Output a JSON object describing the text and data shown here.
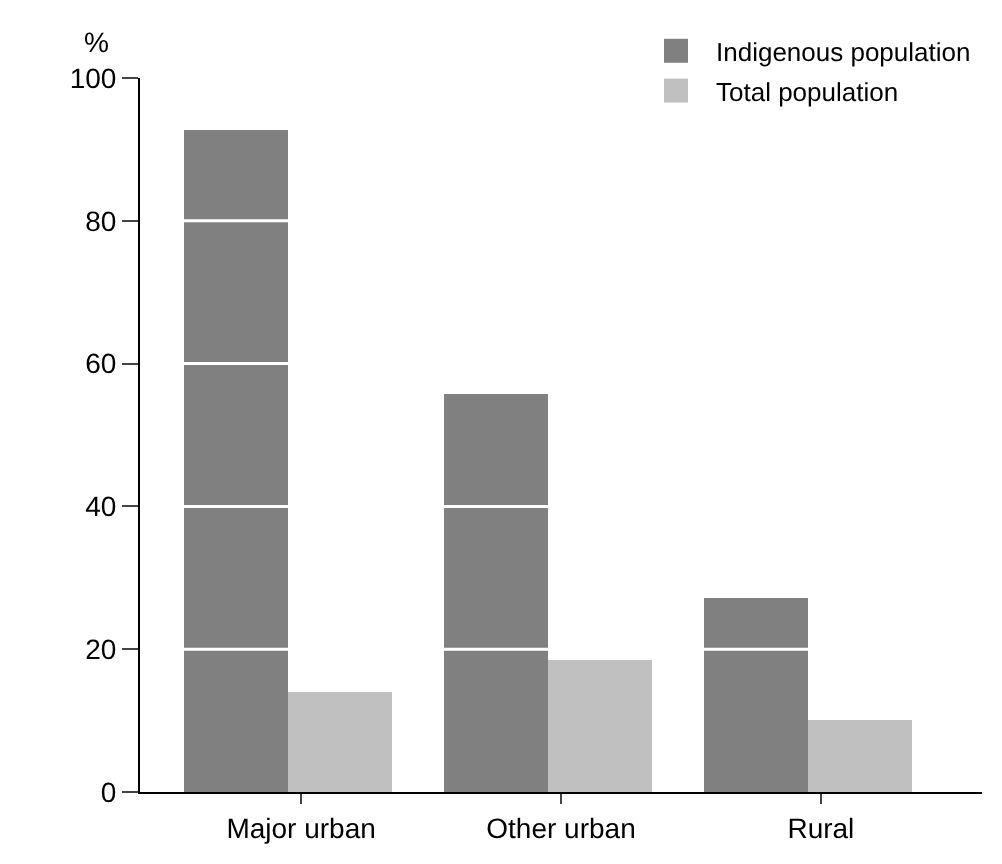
{
  "chart_data": {
    "type": "bar",
    "ylabel": "%",
    "categories": [
      "Major urban",
      "Other urban",
      "Rural"
    ],
    "series": [
      {
        "name": "Indigenous population",
        "color": "#808080",
        "values": [
          92.8,
          55.7,
          27.2
        ]
      },
      {
        "name": "Total population",
        "color": "#c0c0c0",
        "values": [
          14.0,
          18.4,
          10.2
        ]
      }
    ],
    "ylim": [
      0,
      100
    ],
    "yticks": [
      0,
      20,
      40,
      60,
      80,
      100
    ],
    "grid": "y",
    "legend": "top right"
  }
}
